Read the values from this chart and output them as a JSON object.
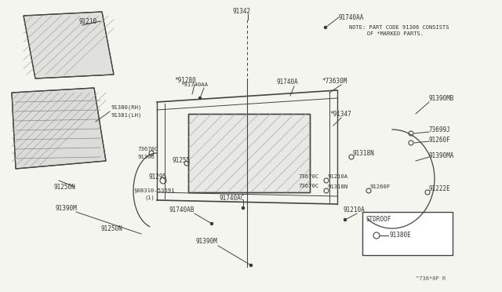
{
  "bg_color": "#f5f5f0",
  "diagram_color": "#333333",
  "line_color": "#444444",
  "note_line1": "NOTE: PART CODE 91306 CONSISTS",
  "note_line2": "   OF *MARKED PARTS.",
  "footer_text": "^736*0P R",
  "stdroOf_label": "STDROОF"
}
